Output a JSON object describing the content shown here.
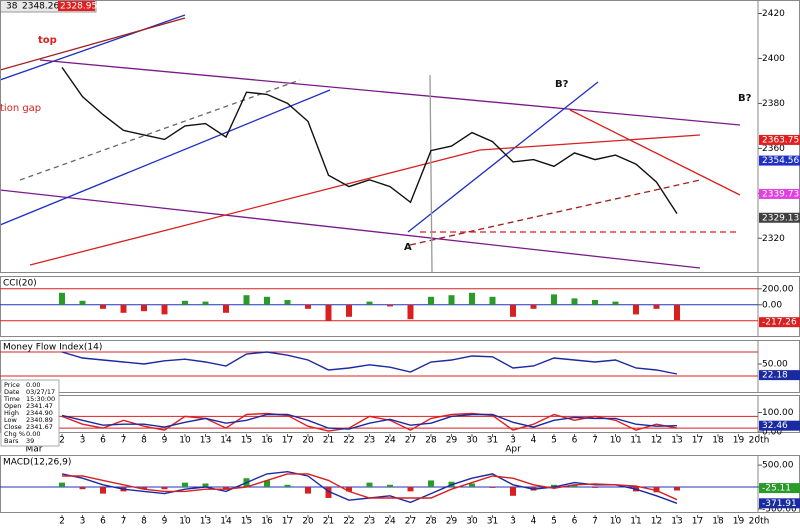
{
  "toolbar": {
    "items": [
      "38",
      "2348.26",
      "2328.95"
    ]
  },
  "info_box": {
    "rows": [
      [
        "Price",
        "0.00"
      ],
      [
        "Date",
        "03/27/17"
      ],
      [
        "Time",
        "15:30:00"
      ],
      [
        "Open",
        "2341.47"
      ],
      [
        "High",
        "2344.90"
      ],
      [
        "Low",
        "2340.89"
      ],
      [
        "Close",
        "2341.67"
      ],
      [
        "Chg %",
        "0.00"
      ],
      [
        "Bars",
        "39"
      ]
    ]
  },
  "months": [
    "Mar",
    "Apr"
  ],
  "annotations": [
    "top",
    "tion gap",
    "B?",
    "B?",
    "A"
  ],
  "chart_data": [
    {
      "type": "line",
      "color": "#111111",
      "categories": [
        "2",
        "3",
        "6",
        "7",
        "8",
        "9",
        "10",
        "13",
        "14",
        "15",
        "16",
        "17",
        "20",
        "21",
        "22",
        "23",
        "24",
        "27",
        "28",
        "29",
        "30",
        "31",
        "3",
        "4",
        "5",
        "6",
        "7",
        "10",
        "11",
        "12",
        "13",
        "17",
        "18",
        "19",
        "20th"
      ],
      "values": [
        2396,
        2383,
        2375,
        2368,
        2366,
        2364,
        2370,
        2371,
        2365,
        2385,
        2384,
        2380,
        2372,
        2348,
        2343,
        2346,
        2343,
        2336,
        2359,
        2361,
        2367,
        2363,
        2354,
        2355,
        2352,
        2358,
        2355,
        2357,
        2353,
        2345,
        2331,
        null,
        null,
        null,
        null
      ],
      "ylim": [
        2305,
        2426
      ],
      "yticks": [
        2320,
        2340,
        2360,
        2380,
        2400,
        2420
      ],
      "value_markers": [
        {
          "value": 2363.75,
          "color": "#e02020"
        },
        {
          "value": 2354.56,
          "color": "#2030c0"
        },
        {
          "value": 2339.73,
          "color": "#e040e0"
        },
        {
          "value": 2329.13,
          "color": "#404040"
        }
      ]
    },
    {
      "type": "bar",
      "title": "CCI(20)",
      "colors": [
        "#2a9a2a",
        "#d82020"
      ],
      "categories": [
        "2",
        "3",
        "6",
        "7",
        "8",
        "9",
        "10",
        "13",
        "14",
        "15",
        "16",
        "17",
        "20",
        "21",
        "22",
        "23",
        "24",
        "27",
        "28",
        "29",
        "30",
        "31",
        "3",
        "4",
        "5",
        "6",
        "7",
        "10",
        "11",
        "12",
        "13",
        "17",
        "18",
        "19",
        "20th"
      ],
      "values": [
        150,
        50,
        -50,
        -100,
        -80,
        -120,
        50,
        40,
        -100,
        120,
        100,
        60,
        -50,
        -200,
        -150,
        40,
        -20,
        -180,
        100,
        120,
        150,
        100,
        -150,
        -50,
        130,
        80,
        60,
        40,
        -120,
        -50,
        -190,
        null,
        null,
        null,
        null
      ],
      "ylim": [
        -390,
        360
      ],
      "yticks": [
        {
          "value": 200,
          "label": "200.00"
        },
        {
          "value": 0,
          "label": "0.00"
        }
      ],
      "levels": [
        200,
        0,
        -200
      ],
      "level_colors": [
        "#d82020",
        "#2030c0",
        "#d82020"
      ],
      "value_markers": [
        {
          "value": -217.26,
          "color": "#d82020"
        }
      ]
    },
    {
      "type": "line",
      "title": "Money Flow Index(14)",
      "color": "#1a2aa0",
      "categories": [
        "2",
        "3",
        "6",
        "7",
        "8",
        "9",
        "10",
        "13",
        "14",
        "15",
        "16",
        "17",
        "20",
        "21",
        "22",
        "23",
        "24",
        "27",
        "28",
        "29",
        "30",
        "31",
        "3",
        "4",
        "5",
        "6",
        "7",
        "10",
        "11",
        "12",
        "13",
        "17",
        "18",
        "19",
        "20th"
      ],
      "values": [
        80,
        65,
        60,
        55,
        50,
        58,
        62,
        55,
        45,
        75,
        80,
        72,
        60,
        35,
        40,
        48,
        42,
        30,
        55,
        60,
        70,
        68,
        40,
        45,
        65,
        60,
        55,
        60,
        40,
        35,
        25,
        null,
        null,
        null,
        null
      ],
      "ylim": [
        -20,
        110
      ],
      "yticks": [
        {
          "value": 50,
          "label": "50.00"
        }
      ],
      "levels": [
        80,
        20
      ],
      "level_colors": [
        "#d82020",
        "#d82020"
      ],
      "value_markers": [
        {
          "value": 22.18,
          "color": "#1a2aa0"
        }
      ]
    },
    {
      "type": "multi_line",
      "categories": [
        "2",
        "3",
        "6",
        "7",
        "8",
        "9",
        "10",
        "13",
        "14",
        "15",
        "16",
        "17",
        "20",
        "21",
        "22",
        "23",
        "24",
        "27",
        "28",
        "29",
        "30",
        "31",
        "3",
        "4",
        "5",
        "6",
        "7",
        "10",
        "11",
        "12",
        "13",
        "17",
        "18",
        "19",
        "20th"
      ],
      "series": [
        {
          "color": "#e02020",
          "values": [
            80,
            40,
            20,
            60,
            30,
            10,
            80,
            70,
            20,
            90,
            95,
            85,
            30,
            5,
            20,
            80,
            60,
            10,
            70,
            90,
            95,
            85,
            10,
            40,
            90,
            60,
            80,
            60,
            10,
            40,
            20,
            null,
            null,
            null,
            null
          ]
        },
        {
          "color": "#1a2aa0",
          "values": [
            85,
            60,
            35,
            40,
            40,
            25,
            50,
            70,
            45,
            60,
            90,
            90,
            60,
            20,
            15,
            45,
            65,
            35,
            45,
            80,
            90,
            90,
            50,
            25,
            60,
            75,
            70,
            70,
            40,
            30,
            32.46,
            null,
            null,
            null,
            null
          ]
        }
      ],
      "ylim": [
        0,
        190
      ],
      "yticks": [
        {
          "value": 100,
          "label": "100.00"
        },
        {
          "value": 0,
          "label": "0.00"
        }
      ],
      "levels": [
        80,
        20
      ],
      "level_colors": [
        "#d82020",
        "#d82020"
      ],
      "value_markers": [
        {
          "value": 32.46,
          "color": "#1a2aa0"
        }
      ]
    },
    {
      "type": "combo",
      "title": "MACD(12,26,9)",
      "categories": [
        "2",
        "3",
        "6",
        "7",
        "8",
        "9",
        "10",
        "13",
        "14",
        "15",
        "16",
        "17",
        "20",
        "21",
        "22",
        "23",
        "24",
        "27",
        "28",
        "29",
        "30",
        "31",
        "3",
        "4",
        "5",
        "6",
        "7",
        "10",
        "11",
        "12",
        "13",
        "17",
        "18",
        "19",
        "20th"
      ],
      "series": [
        {
          "kind": "bar",
          "colors": [
            "#2a9a2a",
            "#d82020"
          ],
          "values": [
            100,
            -50,
            -150,
            -100,
            -50,
            -50,
            100,
            80,
            -60,
            200,
            150,
            50,
            -150,
            -250,
            -100,
            100,
            50,
            -100,
            150,
            120,
            80,
            -20,
            -200,
            -80,
            50,
            60,
            -20,
            0,
            -100,
            -120,
            -80,
            null,
            null,
            null,
            null
          ]
        },
        {
          "kind": "line",
          "color": "#1a2aa0",
          "values": [
            300,
            200,
            50,
            -50,
            -100,
            -150,
            -50,
            0,
            -100,
            100,
            300,
            350,
            250,
            -100,
            -300,
            -250,
            -200,
            -350,
            -150,
            50,
            200,
            300,
            50,
            -50,
            0,
            100,
            50,
            50,
            -50,
            -200,
            -371.91,
            null,
            null,
            null,
            null
          ]
        },
        {
          "kind": "line",
          "color": "#d82020",
          "values": [
            250,
            250,
            150,
            50,
            -50,
            -100,
            -100,
            -50,
            -50,
            0,
            150,
            300,
            300,
            150,
            -100,
            -250,
            -250,
            -250,
            -250,
            -50,
            100,
            250,
            200,
            50,
            -30,
            50,
            70,
            50,
            20,
            -80,
            -290,
            null,
            null,
            null,
            null
          ]
        }
      ],
      "ylim": [
        -570,
        730
      ],
      "yticks": [
        {
          "value": 500,
          "label": "500.00"
        },
        {
          "value": 0,
          "label": "0.00"
        },
        {
          "value": -500,
          "label": "-500.00"
        }
      ],
      "levels": [
        0
      ],
      "level_colors": [
        "#2030c0"
      ],
      "value_markers": [
        {
          "value": -25.11,
          "color": "#2a9a2a"
        },
        {
          "value": -371.91,
          "color": "#1a2aa0"
        }
      ]
    }
  ]
}
